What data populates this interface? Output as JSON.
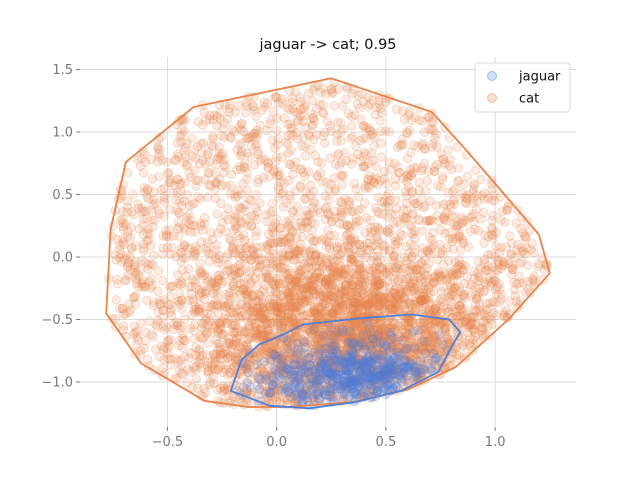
{
  "chart_data": {
    "type": "scatter",
    "title": "jaguar -> cat; 0.95",
    "xlabel": "",
    "ylabel": "",
    "xlim": [
      -0.9,
      1.37
    ],
    "ylim": [
      -1.36,
      1.6
    ],
    "xticks": [
      -0.5,
      0.0,
      0.5,
      1.0
    ],
    "xtick_labels": [
      "−0.5",
      "0.0",
      "0.5",
      "1.0"
    ],
    "yticks": [
      -1.0,
      -0.5,
      0.0,
      0.5,
      1.0,
      1.5
    ],
    "ytick_labels": [
      "−1.0",
      "−0.5",
      "0.0",
      "0.5",
      "1.0",
      "1.5"
    ],
    "grid": true,
    "legend_position": "top-right",
    "series": [
      {
        "name": "jaguar",
        "color": "#4f7fd9",
        "point_count": 600,
        "hull": [
          [
            -0.21,
            -1.07
          ],
          [
            -0.03,
            -1.19
          ],
          [
            0.15,
            -1.21
          ],
          [
            0.36,
            -1.16
          ],
          [
            0.57,
            -1.07
          ],
          [
            0.74,
            -0.92
          ],
          [
            0.8,
            -0.72
          ],
          [
            0.84,
            -0.6
          ],
          [
            0.79,
            -0.5
          ],
          [
            0.62,
            -0.46
          ],
          [
            0.38,
            -0.49
          ],
          [
            0.12,
            -0.54
          ],
          [
            0.03,
            -0.62
          ],
          [
            -0.08,
            -0.7
          ],
          [
            -0.16,
            -0.82
          ]
        ]
      },
      {
        "name": "cat",
        "color": "#e8844a",
        "point_count": 4200,
        "hull": [
          [
            -0.33,
            -1.15
          ],
          [
            -0.13,
            -1.2
          ],
          [
            0.05,
            -1.2
          ],
          [
            0.35,
            -1.16
          ],
          [
            0.6,
            -1.06
          ],
          [
            0.82,
            -0.88
          ],
          [
            1.06,
            -0.5
          ],
          [
            1.25,
            -0.13
          ],
          [
            1.2,
            0.18
          ],
          [
            0.86,
            0.87
          ],
          [
            0.71,
            1.16
          ],
          [
            0.25,
            1.43
          ],
          [
            -0.38,
            1.2
          ],
          [
            -0.69,
            0.76
          ],
          [
            -0.76,
            0.22
          ],
          [
            -0.78,
            -0.45
          ],
          [
            -0.62,
            -0.85
          ]
        ]
      }
    ]
  }
}
